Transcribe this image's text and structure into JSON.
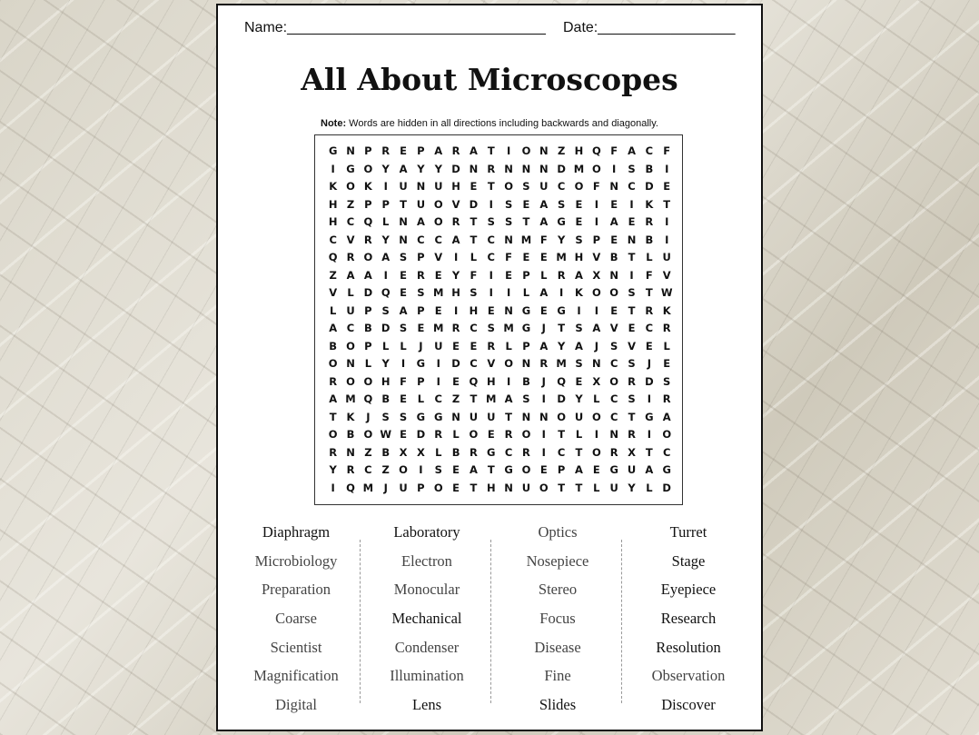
{
  "header": {
    "name_label": "Name:________________________________",
    "date_label": "Date:_________________"
  },
  "title": "All About Microscopes",
  "note": {
    "bold": "Note:",
    "text": " Words are hidden in all directions including backwards and diagonally."
  },
  "grid": [
    "GNPREPARATIONZHQFACF",
    "IGOYAYYDNRNNNDMOISBI",
    "KOKIUNUHETOSUCOFNCDE",
    "HZPPTUOVDISEASEIEIKT",
    "HCQLNAORTSSTAGEIAERI",
    "CVRYNCCATCNMFYSPENBI",
    "QROASPVILCFEEMHVBTLU",
    "ZAAIEREYFIEPLRAXNIFV",
    "VLDQESMHSIILAIKOOSTW",
    "LUPSAPEIHENGEGIIETRK",
    "ACBDSEMRCSMGJTSAVECR",
    "BOPLLJUEERLPAYAJSVEL",
    "ONLYIGIDCVONRMSNCSJE",
    "ROOHFPIEQHIBJQEXORDS",
    "AMQBELCZTMASIDYLCSIR",
    "TKJSSGGNUUTNNOUOCTGA",
    "OBOWEDRLOEROITLINRIO",
    "RNZBXXLBRGCRICTORXTC",
    "YRCZOISEATGOEPAEGUAG",
    "IQMJUPOETHNUOTTLUYLD"
  ],
  "words": [
    [
      "Diaphragm",
      "Microbiology",
      "Preparation",
      "Coarse",
      "Scientist",
      "Magnification",
      "Digital"
    ],
    [
      "Laboratory",
      "Electron",
      "Monocular",
      "Mechanical",
      "Condenser",
      "Illumination",
      "Lens"
    ],
    [
      "Optics",
      "Nosepiece",
      "Stereo",
      "Focus",
      "Disease",
      "Fine",
      "Slides"
    ],
    [
      "Turret",
      "Stage",
      "Eyepiece",
      "Research",
      "Resolution",
      "Observation",
      "Discover"
    ]
  ]
}
